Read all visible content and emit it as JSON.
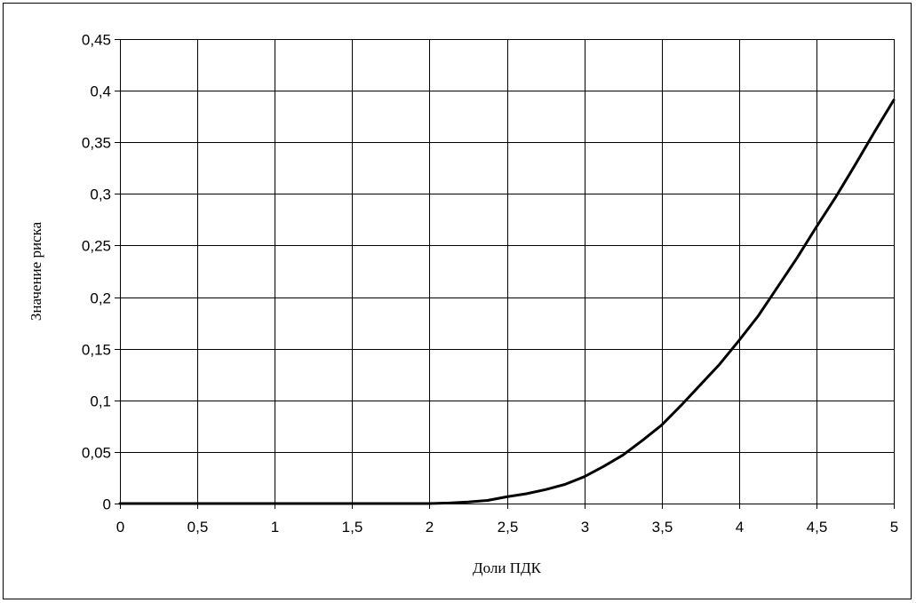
{
  "chart_data": {
    "type": "line",
    "title": "",
    "xlabel": "Доли ПДК",
    "ylabel": "Значение риска",
    "xlim": [
      0,
      5
    ],
    "ylim": [
      0,
      0.45
    ],
    "grid": true,
    "legend": "none",
    "x_tick_labels": [
      "0",
      "0,5",
      "1",
      "1,5",
      "2",
      "2,5",
      "3",
      "3,5",
      "4",
      "4,5",
      "5"
    ],
    "y_tick_labels": [
      "0",
      "0,05",
      "0,1",
      "0,15",
      "0,2",
      "0,25",
      "0,3",
      "0,35",
      "0,4",
      "0,45"
    ],
    "series": [
      {
        "color": "#000000",
        "x": [
          0,
          0.5,
          1,
          1.5,
          2,
          2.125,
          2.25,
          2.375,
          2.5,
          2.625,
          2.75,
          2.875,
          3,
          3.125,
          3.25,
          3.375,
          3.5,
          3.625,
          3.75,
          3.875,
          4,
          4.125,
          4.25,
          4.375,
          4.5,
          4.625,
          4.75,
          4.875,
          5
        ],
        "y": [
          0,
          0,
          0,
          0,
          0,
          0.0005,
          0.0015,
          0.003,
          0.0065,
          0.0095,
          0.0135,
          0.0185,
          0.026,
          0.036,
          0.047,
          0.061,
          0.076,
          0.095,
          0.115,
          0.135,
          0.158,
          0.182,
          0.21,
          0.238,
          0.268,
          0.297,
          0.328,
          0.36,
          0.391
        ]
      }
    ]
  }
}
